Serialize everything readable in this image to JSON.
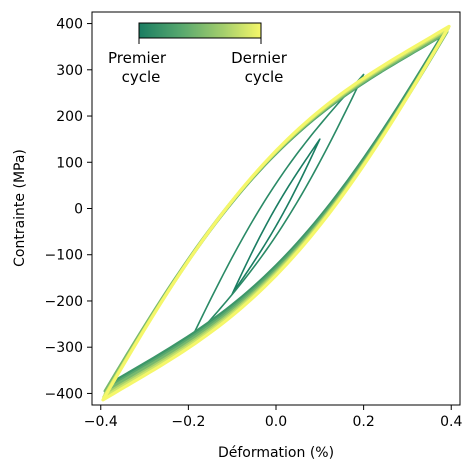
{
  "chart_data": {
    "type": "line",
    "title": "",
    "xlabel": "Déformation (%)",
    "ylabel": "Contrainte (MPa)",
    "xlim": [
      -0.42,
      0.42
    ],
    "ylim": [
      -425,
      425
    ],
    "xticks": [
      -0.4,
      -0.2,
      0.0,
      0.2,
      0.4
    ],
    "xtick_labels": [
      "−0.4",
      "−0.2",
      "0.0",
      "0.2",
      "0.4"
    ],
    "yticks": [
      -400,
      -300,
      -200,
      -100,
      0,
      100,
      200,
      300,
      400
    ],
    "ytick_labels": [
      "−400",
      "−300",
      "−200",
      "−100",
      "0",
      "100",
      "200",
      "300",
      "400"
    ],
    "grid": false,
    "colormap": [
      "#1a7d62",
      "#58a86e",
      "#a6cf6c",
      "#f5f76a"
    ],
    "colorbar": {
      "placement": "top-left",
      "label_start": [
        "Premier",
        "cycle"
      ],
      "label_end": [
        "Dernier",
        "cycle"
      ]
    },
    "series": [
      {
        "strain_amplitude": 0.1,
        "stress_max": 150,
        "stress_min": -185,
        "color": "#1a7d62"
      },
      {
        "strain_amplitude": 0.2,
        "stress_max": 290,
        "stress_min": -295,
        "color": "#2a8a66"
      },
      {
        "strain_amplitude": 0.38,
        "stress_max": 375,
        "stress_min": -380,
        "color": "#3d9769"
      },
      {
        "strain_amplitude": 0.385,
        "stress_max": 378,
        "stress_min": -388,
        "color": "#58a86e"
      },
      {
        "strain_amplitude": 0.39,
        "stress_max": 382,
        "stress_min": -395,
        "color": "#78b96f"
      },
      {
        "strain_amplitude": 0.39,
        "stress_max": 386,
        "stress_min": -402,
        "color": "#a6cf6c"
      },
      {
        "strain_amplitude": 0.393,
        "stress_max": 390,
        "stress_min": -408,
        "color": "#cbe46b"
      },
      {
        "strain_amplitude": 0.395,
        "stress_max": 394,
        "stress_min": -414,
        "color": "#f5f76a"
      }
    ]
  }
}
